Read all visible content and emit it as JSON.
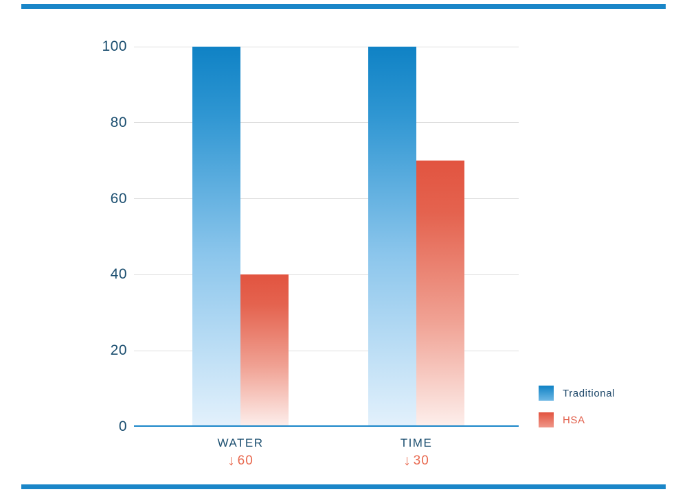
{
  "page": {
    "background": "#ffffff"
  },
  "decor": {
    "top_rule_color": "#1a86c8",
    "bottom_rule_color": "#1a86c8"
  },
  "chart_data": {
    "type": "bar",
    "title": "",
    "xlabel": "",
    "ylabel": "",
    "categories": [
      "WATER",
      "TIME"
    ],
    "series": [
      {
        "name": "Traditional",
        "values": [
          100,
          100
        ]
      },
      {
        "name": "HSA",
        "values": [
          40,
          70
        ]
      }
    ],
    "ylim": [
      0,
      100
    ],
    "yticks": [
      0,
      20,
      40,
      60,
      80,
      100
    ],
    "grid": true,
    "legend_position": "right",
    "annotations": [
      {
        "category": "WATER",
        "arrow": "↓",
        "value": "60"
      },
      {
        "category": "TIME",
        "arrow": "↓",
        "value": "30"
      }
    ]
  },
  "legend": {
    "items": [
      {
        "label": "Traditional",
        "swatch_top": "#0f82c5",
        "swatch_bottom": "#6db7e4",
        "label_color": "#1c4668"
      },
      {
        "label": "HSA",
        "swatch_top": "#e25440",
        "swatch_bottom": "#ef9789",
        "label_color": "#e2604c"
      }
    ]
  },
  "colors": {
    "traditional_top": "#0f82c5",
    "traditional_mid1": "#2f96d2",
    "traditional_mid2": "#8cc6ec",
    "traditional_bottom": "#e3f1fc",
    "hsa_top": "#e25440",
    "hsa_mid1": "#e4634f",
    "hsa_mid2": "#f0a193",
    "hsa_bottom": "#fdefec",
    "axis_line": "#1a86c8",
    "gridline": "#dedede",
    "tick_label": "#1c4f70",
    "category_label": "#1c4f70",
    "annotation": "#e8694f"
  }
}
